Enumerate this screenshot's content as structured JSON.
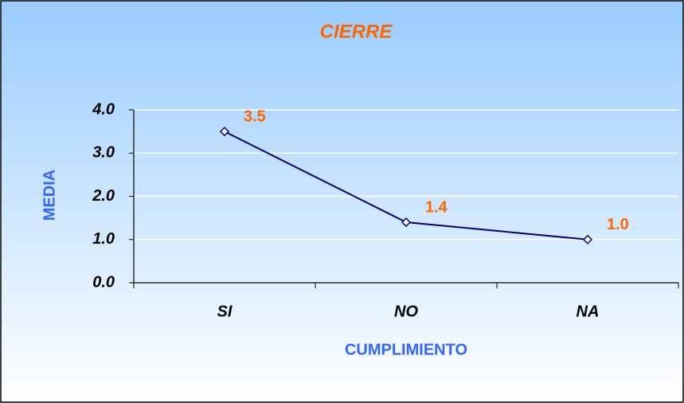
{
  "chart_data": {
    "type": "line",
    "title": "CIERRE",
    "x_label": "CUMPLIMIENTO",
    "y_label": "MEDIA",
    "categories": [
      "SI",
      "NO",
      "NA"
    ],
    "values": [
      3.5,
      1.4,
      1.0
    ],
    "value_labels": [
      "3.5",
      "1.4",
      "1.0"
    ],
    "color": "#000080",
    "ylim": [
      0,
      4
    ],
    "yticks": [
      {
        "value": 0,
        "label": "0.0"
      },
      {
        "value": 1,
        "label": "1.0"
      },
      {
        "value": 2,
        "label": "2.0"
      },
      {
        "value": 3,
        "label": "3.0"
      },
      {
        "value": 4,
        "label": "4.0"
      }
    ],
    "grid": true
  }
}
